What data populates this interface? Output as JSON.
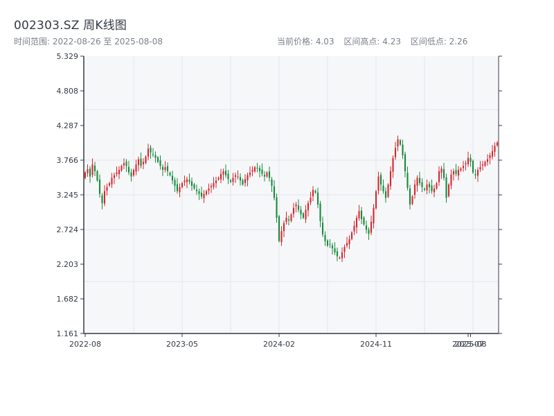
{
  "header": {
    "title": "002303.SZ 周K线图",
    "subtitle": "时间范围: 2022-08-26 至 2025-08-08",
    "stat_current": "当前价格: 4.03",
    "stat_high": "区间高点: 4.23",
    "stat_low": "区间低点: 2.26"
  },
  "colors": {
    "up": "#d7262d",
    "down": "#168a3c",
    "plot_bg": "#f6f7f9",
    "grid": "#e4e6ea",
    "axis": "#333a44"
  },
  "chart_data": {
    "type": "candlestick",
    "title": "002303.SZ 周K线图",
    "subtitle": "时间范围: 2022-08-26 至 2025-08-08",
    "ylim": [
      1.161,
      5.329
    ],
    "y_ticks": [
      "1.161",
      "1.682",
      "2.203",
      "2.724",
      "3.245",
      "3.766",
      "4.287",
      "4.808",
      "5.329"
    ],
    "x_ticks": [
      "2022-08",
      "2023-05",
      "2024-02",
      "2024-11",
      "2025-07",
      "2025-08"
    ],
    "x_tick_weeks": [
      0,
      40,
      80,
      120,
      158,
      159
    ],
    "grid": true,
    "up_color": "red",
    "down_color": "green",
    "weekly_close": [
      3.58,
      3.63,
      3.52,
      3.7,
      3.6,
      3.46,
      3.26,
      3.12,
      3.3,
      3.36,
      3.42,
      3.5,
      3.54,
      3.58,
      3.62,
      3.68,
      3.72,
      3.68,
      3.58,
      3.52,
      3.62,
      3.7,
      3.78,
      3.68,
      3.74,
      3.82,
      3.94,
      3.88,
      3.85,
      3.8,
      3.74,
      3.68,
      3.62,
      3.66,
      3.6,
      3.54,
      3.46,
      3.38,
      3.3,
      3.36,
      3.42,
      3.46,
      3.48,
      3.44,
      3.38,
      3.34,
      3.3,
      3.26,
      3.22,
      3.26,
      3.3,
      3.34,
      3.38,
      3.42,
      3.46,
      3.5,
      3.56,
      3.6,
      3.54,
      3.48,
      3.44,
      3.5,
      3.54,
      3.52,
      3.46,
      3.4,
      3.48,
      3.54,
      3.58,
      3.62,
      3.66,
      3.64,
      3.6,
      3.56,
      3.52,
      3.58,
      3.5,
      3.38,
      3.2,
      2.9,
      2.55,
      2.7,
      2.82,
      2.9,
      2.86,
      2.95,
      3.05,
      3.1,
      3.02,
      2.95,
      2.9,
      3.02,
      3.12,
      3.2,
      3.32,
      3.28,
      3.1,
      2.85,
      2.65,
      2.55,
      2.48,
      2.5,
      2.44,
      2.38,
      2.32,
      2.3,
      2.38,
      2.46,
      2.52,
      2.58,
      2.68,
      2.78,
      2.9,
      3.0,
      2.88,
      2.8,
      2.72,
      2.66,
      2.84,
      3.05,
      3.3,
      3.52,
      3.4,
      3.3,
      3.2,
      3.4,
      3.6,
      3.8,
      3.95,
      4.08,
      4.0,
      3.84,
      3.6,
      3.35,
      3.1,
      3.22,
      3.4,
      3.5,
      3.42,
      3.36,
      3.32,
      3.4,
      3.36,
      3.3,
      3.34,
      3.42,
      3.6,
      3.64,
      3.5,
      3.2,
      3.4,
      3.55,
      3.6,
      3.56,
      3.62,
      3.64,
      3.68,
      3.72,
      3.8,
      3.74,
      3.58,
      3.54,
      3.62,
      3.66,
      3.7,
      3.74,
      3.78,
      3.84,
      3.9,
      3.98,
      4.03
    ]
  }
}
